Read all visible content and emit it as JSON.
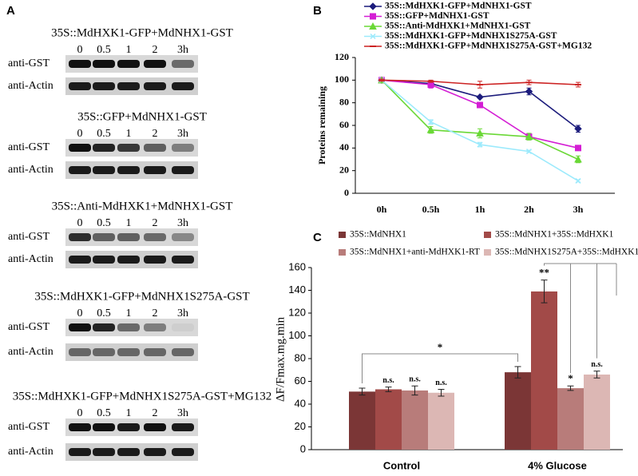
{
  "panel_labels": [
    "A",
    "B",
    "C"
  ],
  "blots": [
    {
      "title": "35S::MdHXK1-GFP+MdNHX1-GST",
      "times": [
        "0",
        "0.5",
        "1",
        "2",
        "3h"
      ],
      "rows": [
        "anti-GST",
        "anti-Actin"
      ]
    },
    {
      "title": "35S::GFP+MdNHX1-GST",
      "times": [
        "0",
        "0.5",
        "1",
        "2",
        "3h"
      ],
      "rows": [
        "anti-GST",
        "anti-Actin"
      ]
    },
    {
      "title": "35S::Anti-MdHXK1+MdNHX1-GST",
      "times": [
        "0",
        "0.5",
        "1",
        "2",
        "3h"
      ],
      "rows": [
        "anti-GST",
        "anti-Actin"
      ]
    },
    {
      "title": "35S::MdHXK1-GFP+MdNHX1S275A-GST",
      "times": [
        "0",
        "0.5",
        "1",
        "2",
        "3h"
      ],
      "rows": [
        "anti-GST",
        "anti-Actin"
      ]
    },
    {
      "title": "35S::MdHXK1-GFP+MdNHX1S275A-GST+MG132",
      "times": [
        "0",
        "0.5",
        "1",
        "2",
        "3h"
      ],
      "rows": [
        "anti-GST",
        "anti-Actin"
      ]
    }
  ],
  "chart_data": [
    {
      "type": "line",
      "y_label": "Proteins remaining",
      "categories": [
        "0h",
        "0.5h",
        "1h",
        "2h",
        "3h"
      ],
      "ylim": [
        0,
        120
      ],
      "yticks": [
        0,
        20,
        40,
        60,
        80,
        100,
        120
      ],
      "series": [
        {
          "name": "35S::MdHXK1-GFP+MdNHX1-GST",
          "color": "#1c1c7c",
          "marker": "diamond",
          "values": [
            100,
            97,
            85,
            90,
            57
          ],
          "errors": [
            1,
            2,
            1,
            3,
            3
          ]
        },
        {
          "name": "35S::GFP+MdNHX1-GST",
          "color": "#d41ed4",
          "marker": "square",
          "values": [
            100,
            96,
            78,
            50,
            40
          ],
          "errors": [
            1,
            3,
            2,
            2,
            2
          ]
        },
        {
          "name": "35S::Anti-MdHXK1+MdNHX1-GST",
          "color": "#6ad836",
          "marker": "triangle",
          "values": [
            100,
            56,
            53,
            50,
            30
          ],
          "errors": [
            1,
            3,
            4,
            3,
            3
          ]
        },
        {
          "name": "35S::MdHXK1-GFP+MdNHX1S275A-GST",
          "color": "#9ceafc",
          "marker": "cross",
          "values": [
            100,
            63,
            43,
            37,
            11
          ],
          "errors": [
            1,
            2,
            2,
            1,
            1
          ]
        },
        {
          "name": "35S::MdHXK1-GFP+MdNHX1S275A-GST+MG132",
          "color": "#cc2222",
          "marker": "dash",
          "values": [
            100,
            99,
            96,
            98,
            96
          ],
          "errors": [
            1,
            1,
            3,
            2,
            2
          ]
        }
      ]
    },
    {
      "type": "bar",
      "y_label": "ΔF/Fmax.mg.min",
      "categories": [
        "Control",
        "4% Glucose"
      ],
      "ylim": [
        0,
        160
      ],
      "yticks": [
        0,
        20,
        40,
        60,
        80,
        100,
        120,
        140,
        160
      ],
      "bracket_label": "*",
      "series": [
        {
          "name": "35S::MdNHX1",
          "color": "#7b3636",
          "values": [
            51,
            68
          ],
          "errors": [
            3,
            5
          ]
        },
        {
          "name": "35S::MdNHX1+35S::MdHXK1",
          "color": "#a24a48",
          "values": [
            53,
            139
          ],
          "errors": [
            2,
            10
          ],
          "annotations": [
            "n.s.",
            "**"
          ]
        },
        {
          "name": "35S::MdNHX1+anti-MdHXK1-RT",
          "color": "#b87c7a",
          "values": [
            52,
            54
          ],
          "errors": [
            4,
            2
          ],
          "annotations": [
            "n.s.",
            "*"
          ]
        },
        {
          "name": "35S::MdNHX1S275A+35S::MdHXK1",
          "color": "#dcb7b4",
          "values": [
            50,
            66
          ],
          "errors": [
            3,
            3
          ],
          "annotations": [
            "n.s.",
            "n.s."
          ]
        }
      ]
    }
  ]
}
